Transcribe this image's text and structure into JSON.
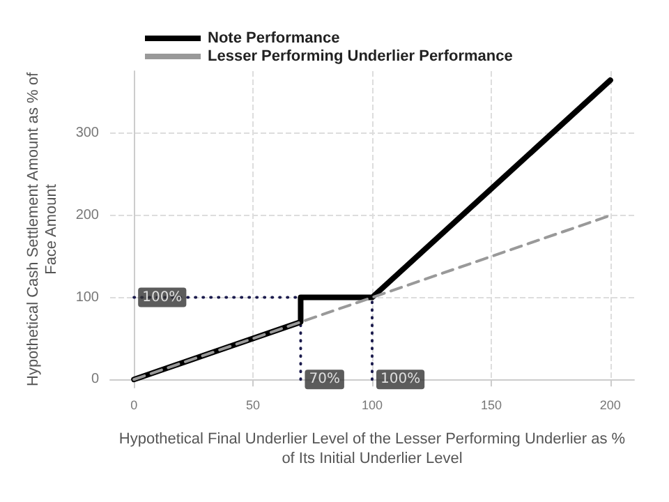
{
  "chart_data": {
    "type": "line",
    "xlabel": "Hypothetical Final Underlier Level of the Lesser Performing Underlier as % of Its Initial Underlier Level",
    "ylabel": "Hypothetical Cash Settlement Amount as % of Face Amount",
    "xlim": [
      -10,
      210
    ],
    "xticks": [
      0,
      50,
      100,
      150,
      200
    ],
    "ylim": [
      -10,
      376
    ],
    "yticks": [
      0,
      100,
      200,
      300
    ],
    "grid": true,
    "legend": "top",
    "marker": "none",
    "series": [
      {
        "name": "Note Performance",
        "color": "#000000",
        "line_style": "solid",
        "x": [
          0,
          70,
          70,
          100,
          200
        ],
        "values": [
          0,
          70,
          100,
          100,
          365
        ]
      },
      {
        "name": "Lesser Performing Underlier Performance",
        "color": "#999999",
        "line_style": "dashed",
        "x": [
          0,
          200
        ],
        "values": [
          0,
          200
        ]
      },
      {
        "color": "#1b1b4d",
        "line_style": "dotted",
        "x": [
          0,
          70
        ],
        "values": [
          100,
          100
        ]
      },
      {
        "color": "#1b1b4d",
        "line_style": "dotted",
        "x": [
          70,
          70
        ],
        "values": [
          0,
          70
        ]
      },
      {
        "color": "#1b1b4d",
        "line_style": "dotted",
        "x": [
          100,
          100
        ],
        "values": [
          0,
          100
        ]
      }
    ],
    "annotations": [
      {
        "text": "100%",
        "x": 0,
        "y": 100
      },
      {
        "text": "70%",
        "x": 70,
        "y": 0
      },
      {
        "text": "100%",
        "x": 100,
        "y": 0
      }
    ]
  }
}
